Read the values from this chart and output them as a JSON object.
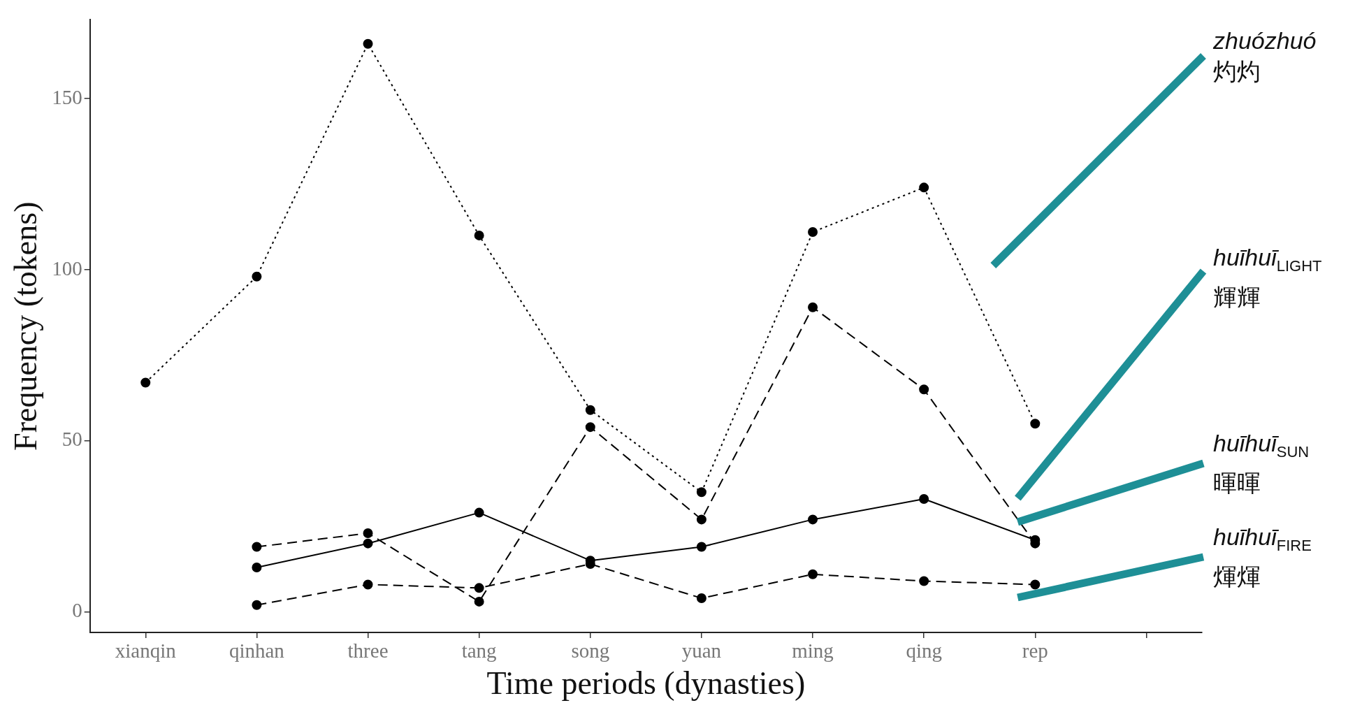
{
  "chart_data": {
    "type": "line",
    "xlabel": "Time periods (dynasties)",
    "ylabel": "Frequency (tokens)",
    "categories": [
      "xianqin",
      "qinhan",
      "three",
      "tang",
      "song",
      "yuan",
      "ming",
      "qing",
      "rep",
      null
    ],
    "ylim": [
      -6,
      173
    ],
    "yticks": [
      0,
      50,
      100,
      150
    ],
    "grid": false,
    "marker": "circle",
    "legend": "right",
    "series": [
      {
        "name": "zhuózhuó\n灼灼",
        "color": "#000000",
        "line_style": "dotted",
        "values": [
          67,
          98,
          166,
          110,
          59,
          35,
          111,
          124,
          55,
          null
        ]
      },
      {
        "name": "huīhuī$_{LIGHT}$\n輝輝",
        "color": "#000000",
        "line_style": "dashed",
        "values": [
          null,
          19,
          23,
          3,
          54,
          27,
          89,
          65,
          20,
          null
        ]
      },
      {
        "name": "huīhuī$_{SUN}$\n暉暉",
        "color": "#000000",
        "line_style": "solid",
        "values": [
          null,
          13,
          20,
          29,
          15,
          19,
          27,
          33,
          21,
          null
        ]
      },
      {
        "name": "huīhuī$_{FIRE}$\n煇煇",
        "color": "#000000",
        "line_style": "dashed",
        "values": [
          null,
          2,
          8,
          7,
          14,
          4,
          11,
          9,
          8,
          null
        ]
      }
    ]
  }
}
